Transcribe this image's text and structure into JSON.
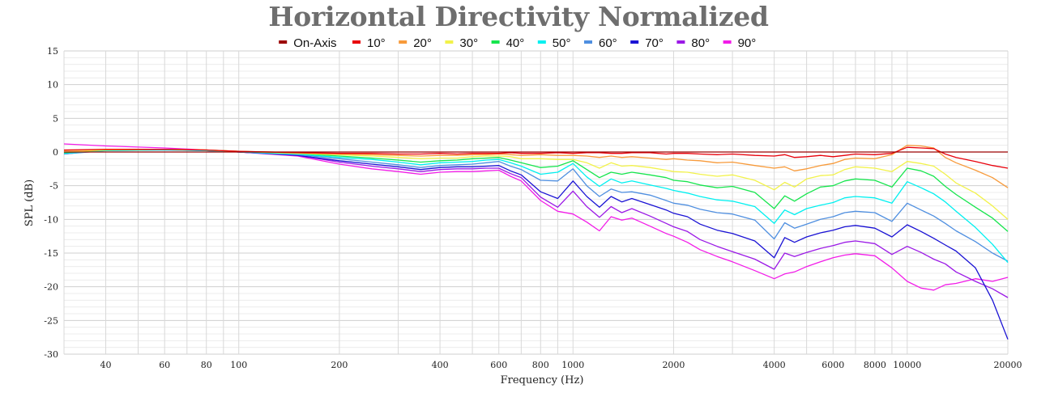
{
  "chart_data": {
    "type": "line",
    "title": "Horizontal Directivity Normalized",
    "xlabel": "Frequency (Hz)",
    "ylabel": "SPL (dB)",
    "x_scale": "log",
    "xlim": [
      30,
      20000
    ],
    "ylim": [
      -30,
      15
    ],
    "x_ticks": [
      40,
      60,
      80,
      100,
      200,
      400,
      600,
      800,
      1000,
      2000,
      4000,
      6000,
      8000,
      10000,
      20000
    ],
    "y_ticks": [
      15,
      10,
      5,
      0,
      -5,
      -10,
      -15,
      -20,
      -25,
      -30
    ],
    "grid": true,
    "legend_position": "top",
    "frequencies": [
      30,
      40,
      60,
      80,
      100,
      150,
      200,
      250,
      300,
      350,
      400,
      450,
      500,
      550,
      600,
      650,
      700,
      800,
      900,
      1000,
      1100,
      1200,
      1300,
      1400,
      1500,
      1700,
      1900,
      2000,
      2200,
      2400,
      2700,
      3000,
      3500,
      4000,
      4300,
      4600,
      5000,
      5500,
      6000,
      6500,
      7000,
      8000,
      9000,
      10000,
      11000,
      12000,
      13000,
      14000,
      16000,
      18000,
      20000
    ],
    "series": [
      {
        "name": "On-Axis",
        "color": "#9b0000",
        "values": [
          0,
          0,
          0,
          0,
          0,
          0,
          0,
          0,
          0,
          0,
          0,
          0,
          0,
          0,
          0,
          0,
          0,
          0,
          0,
          0,
          0,
          0,
          0,
          0,
          0,
          0,
          0,
          0,
          0,
          0,
          0,
          0,
          0,
          0,
          0,
          0,
          0,
          0,
          0,
          0,
          0,
          0,
          0,
          0,
          0,
          0,
          0,
          0,
          0,
          0,
          0
        ]
      },
      {
        "name": "10°",
        "color": "#e8000b",
        "values": [
          0.3,
          0.4,
          0.4,
          0.3,
          0.1,
          -0.1,
          -0.2,
          -0.2,
          -0.3,
          -0.3,
          -0.2,
          -0.3,
          -0.2,
          -0.2,
          -0.2,
          -0.1,
          -0.2,
          -0.2,
          -0.1,
          -0.2,
          -0.1,
          -0.1,
          -0.2,
          -0.2,
          -0.1,
          -0.1,
          -0.3,
          -0.2,
          -0.2,
          -0.3,
          -0.4,
          -0.3,
          -0.5,
          -0.6,
          -0.4,
          -0.8,
          -0.7,
          -0.5,
          -0.7,
          -0.5,
          -0.3,
          -0.4,
          -0.2,
          0.7,
          0.6,
          0.5,
          -0.3,
          -0.8,
          -1.4,
          -2.0,
          -2.4
        ]
      },
      {
        "name": "20°",
        "color": "#f79a3a",
        "values": [
          0.2,
          0.4,
          0.4,
          0.3,
          0.1,
          -0.1,
          -0.3,
          -0.4,
          -0.5,
          -0.6,
          -0.5,
          -0.5,
          -0.4,
          -0.4,
          -0.3,
          -0.4,
          -0.5,
          -0.4,
          -0.5,
          -0.5,
          -0.6,
          -0.8,
          -0.6,
          -0.8,
          -0.7,
          -0.9,
          -1.1,
          -1.0,
          -1.2,
          -1.3,
          -1.6,
          -1.5,
          -2.0,
          -2.4,
          -2.2,
          -2.8,
          -2.5,
          -2.0,
          -1.7,
          -1.1,
          -0.9,
          -1.0,
          -0.4,
          1.0,
          0.9,
          0.6,
          -0.8,
          -1.6,
          -2.7,
          -3.8,
          -5.3
        ]
      },
      {
        "name": "30°",
        "color": "#f2f24a",
        "values": [
          0,
          0.3,
          0.4,
          0.3,
          0.1,
          -0.2,
          -0.4,
          -0.6,
          -0.8,
          -1.0,
          -0.9,
          -0.9,
          -0.7,
          -0.6,
          -0.6,
          -0.7,
          -1.0,
          -1.0,
          -1.1,
          -1.1,
          -1.6,
          -2.4,
          -1.6,
          -2.1,
          -2.0,
          -2.3,
          -2.7,
          -2.9,
          -3.0,
          -3.3,
          -3.6,
          -3.4,
          -4.2,
          -5.6,
          -4.5,
          -5.2,
          -4.0,
          -3.5,
          -3.4,
          -2.6,
          -2.2,
          -2.4,
          -2.9,
          -1.4,
          -1.7,
          -2.1,
          -3.3,
          -4.6,
          -6.1,
          -8.0,
          -10.0
        ]
      },
      {
        "name": "40°",
        "color": "#16e54d",
        "values": [
          -0.1,
          0.3,
          0.4,
          0.3,
          0.1,
          -0.2,
          -0.6,
          -0.9,
          -1.2,
          -1.5,
          -1.3,
          -1.2,
          -1.0,
          -0.9,
          -0.8,
          -1.2,
          -1.6,
          -2.3,
          -2.1,
          -1.3,
          -2.6,
          -3.8,
          -3.0,
          -3.3,
          -3.0,
          -3.4,
          -3.8,
          -4.2,
          -4.4,
          -4.9,
          -5.3,
          -5.1,
          -6.0,
          -8.4,
          -6.5,
          -7.3,
          -6.2,
          -5.2,
          -5.0,
          -4.3,
          -4.0,
          -4.2,
          -5.2,
          -2.4,
          -2.8,
          -3.6,
          -5.1,
          -6.3,
          -8.2,
          -9.8,
          -11.8
        ]
      },
      {
        "name": "50°",
        "color": "#00f0f0",
        "values": [
          -0.2,
          0.2,
          0.3,
          0.2,
          0,
          -0.3,
          -0.8,
          -1.1,
          -1.5,
          -1.9,
          -1.6,
          -1.5,
          -1.4,
          -1.2,
          -1.1,
          -1.6,
          -2.1,
          -3.3,
          -3.0,
          -1.7,
          -3.7,
          -5.1,
          -4.0,
          -4.6,
          -4.3,
          -4.9,
          -5.4,
          -5.7,
          -6.1,
          -6.6,
          -7.1,
          -7.3,
          -8.1,
          -10.6,
          -8.6,
          -9.3,
          -8.4,
          -7.9,
          -7.5,
          -6.8,
          -6.6,
          -6.8,
          -7.6,
          -4.4,
          -5.3,
          -6.2,
          -7.4,
          -8.8,
          -11.2,
          -13.7,
          -16.4
        ]
      },
      {
        "name": "60°",
        "color": "#4f8fe0",
        "values": [
          -0.3,
          0.2,
          0.3,
          0.2,
          0,
          -0.4,
          -1.0,
          -1.5,
          -1.9,
          -2.3,
          -2.0,
          -1.9,
          -1.8,
          -1.6,
          -1.4,
          -2.1,
          -2.6,
          -4.2,
          -4.3,
          -2.5,
          -5.0,
          -6.6,
          -5.5,
          -6.0,
          -5.9,
          -6.4,
          -7.2,
          -7.6,
          -7.9,
          -8.5,
          -9.0,
          -9.2,
          -10.1,
          -12.9,
          -10.5,
          -11.3,
          -10.7,
          -10.0,
          -9.6,
          -9.0,
          -8.8,
          -9.0,
          -10.3,
          -7.6,
          -8.6,
          -9.5,
          -10.6,
          -11.7,
          -13.3,
          -15.0,
          -16.2
        ]
      },
      {
        "name": "70°",
        "color": "#1a12d4",
        "values": [
          -0.3,
          0.3,
          0.4,
          0.2,
          0,
          -0.5,
          -1.3,
          -1.8,
          -2.2,
          -2.6,
          -2.3,
          -2.2,
          -2.2,
          -2.1,
          -2.0,
          -2.8,
          -3.4,
          -5.9,
          -6.9,
          -4.3,
          -6.6,
          -8.2,
          -6.6,
          -7.4,
          -6.9,
          -7.8,
          -8.6,
          -9.1,
          -9.6,
          -10.7,
          -11.6,
          -12.1,
          -13.2,
          -15.7,
          -12.7,
          -13.4,
          -12.6,
          -12.0,
          -11.6,
          -11.1,
          -10.9,
          -11.3,
          -12.6,
          -10.8,
          -11.8,
          -12.8,
          -13.8,
          -14.7,
          -17.2,
          -22.0,
          -27.8
        ]
      },
      {
        "name": "80°",
        "color": "#9b19e6",
        "values": [
          -0.2,
          0.4,
          0.4,
          0.2,
          0,
          -0.5,
          -1.5,
          -2.1,
          -2.5,
          -2.9,
          -2.6,
          -2.5,
          -2.5,
          -2.4,
          -2.4,
          -3.2,
          -3.8,
          -6.7,
          -8.2,
          -5.8,
          -8.1,
          -9.7,
          -8.1,
          -9.0,
          -8.4,
          -9.5,
          -10.6,
          -11.1,
          -11.8,
          -13.0,
          -14.0,
          -14.8,
          -15.9,
          -17.4,
          -15.0,
          -15.5,
          -14.9,
          -14.3,
          -13.9,
          -13.4,
          -13.2,
          -13.6,
          -15.2,
          -14.0,
          -14.9,
          -15.9,
          -16.6,
          -17.8,
          -19.2,
          -20.3,
          -21.6
        ]
      },
      {
        "name": "90°",
        "color": "#f21ce8",
        "values": [
          1.2,
          0.9,
          0.6,
          0.3,
          0,
          -0.6,
          -1.8,
          -2.5,
          -2.9,
          -3.3,
          -3.0,
          -2.9,
          -2.9,
          -2.8,
          -2.7,
          -3.6,
          -4.3,
          -7.2,
          -8.8,
          -9.2,
          -10.4,
          -11.7,
          -9.6,
          -10.1,
          -9.8,
          -11.0,
          -12.1,
          -12.5,
          -13.4,
          -14.5,
          -15.5,
          -16.3,
          -17.6,
          -18.8,
          -18.1,
          -17.8,
          -17.0,
          -16.3,
          -15.7,
          -15.3,
          -15.1,
          -15.4,
          -17.2,
          -19.2,
          -20.2,
          -20.5,
          -19.7,
          -19.5,
          -18.8,
          -19.2,
          -18.6
        ]
      }
    ]
  }
}
